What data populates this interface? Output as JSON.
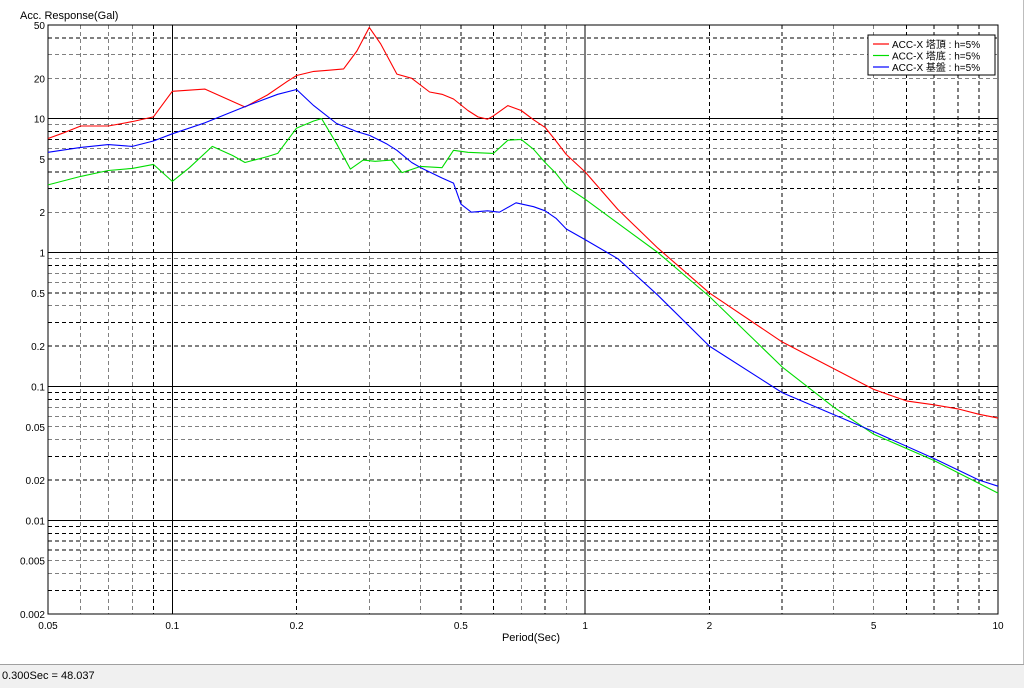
{
  "chart_data": {
    "type": "line",
    "ylabel": "Acc. Response(Gal)",
    "xlabel": "Period(Sec)",
    "x_scale": "log",
    "y_scale": "log",
    "xlim": [
      0.05,
      10
    ],
    "ylim": [
      0.002,
      50
    ],
    "x_ticks": [
      {
        "v": 0.05,
        "label": "0.05"
      },
      {
        "v": 0.1,
        "label": "0.1"
      },
      {
        "v": 0.2,
        "label": "0.2"
      },
      {
        "v": 0.5,
        "label": "0.5"
      },
      {
        "v": 1,
        "label": "1"
      },
      {
        "v": 2,
        "label": "2"
      },
      {
        "v": 5,
        "label": "5"
      },
      {
        "v": 10,
        "label": "10"
      }
    ],
    "y_ticks": [
      {
        "v": 50,
        "label": "50"
      },
      {
        "v": 20,
        "label": "20"
      },
      {
        "v": 10,
        "label": "10"
      },
      {
        "v": 5,
        "label": "5"
      },
      {
        "v": 2,
        "label": "2"
      },
      {
        "v": 1,
        "label": "1"
      },
      {
        "v": 0.5,
        "label": "0.5"
      },
      {
        "v": 0.2,
        "label": "0.2"
      },
      {
        "v": 0.1,
        "label": "0.1"
      },
      {
        "v": 0.05,
        "label": "0.05"
      },
      {
        "v": 0.02,
        "label": "0.02"
      },
      {
        "v": 0.01,
        "label": "0.01"
      },
      {
        "v": 0.005,
        "label": "0.005"
      },
      {
        "v": 0.002,
        "label": "0.002"
      }
    ],
    "grid": true,
    "legend_position": "top-right",
    "series": [
      {
        "name": "ACC-X 塔頂 : h=5%",
        "color": "#ff0000",
        "points": [
          [
            0.05,
            7.1
          ],
          [
            0.055,
            7.9
          ],
          [
            0.06,
            8.8
          ],
          [
            0.07,
            8.8
          ],
          [
            0.08,
            9.5
          ],
          [
            0.09,
            10.3
          ],
          [
            0.1,
            16.0
          ],
          [
            0.12,
            16.6
          ],
          [
            0.15,
            12.2
          ],
          [
            0.17,
            15.0
          ],
          [
            0.19,
            19.0
          ],
          [
            0.2,
            21.0
          ],
          [
            0.22,
            22.5
          ],
          [
            0.24,
            23.0
          ],
          [
            0.26,
            23.5
          ],
          [
            0.28,
            32.0
          ],
          [
            0.3,
            48.0
          ],
          [
            0.32,
            36.0
          ],
          [
            0.35,
            21.5
          ],
          [
            0.38,
            20.0
          ],
          [
            0.42,
            15.8
          ],
          [
            0.45,
            15.2
          ],
          [
            0.48,
            14.0
          ],
          [
            0.52,
            11.5
          ],
          [
            0.55,
            10.3
          ],
          [
            0.58,
            9.9
          ],
          [
            0.6,
            10.5
          ],
          [
            0.65,
            12.5
          ],
          [
            0.7,
            11.5
          ],
          [
            0.75,
            9.8
          ],
          [
            0.8,
            8.6
          ],
          [
            0.85,
            6.8
          ],
          [
            0.9,
            5.4
          ],
          [
            1.0,
            4.0
          ],
          [
            1.2,
            2.1
          ],
          [
            1.5,
            1.08
          ],
          [
            2.0,
            0.5
          ],
          [
            3.0,
            0.215
          ],
          [
            5.0,
            0.095
          ],
          [
            6.0,
            0.078
          ],
          [
            7.0,
            0.073
          ],
          [
            8.0,
            0.068
          ],
          [
            9.0,
            0.062
          ],
          [
            10.0,
            0.058
          ]
        ]
      },
      {
        "name": "ACC-X 塔底 : h=5%",
        "color": "#00dd00",
        "points": [
          [
            0.05,
            3.2
          ],
          [
            0.06,
            3.7
          ],
          [
            0.07,
            4.1
          ],
          [
            0.08,
            4.25
          ],
          [
            0.09,
            4.55
          ],
          [
            0.1,
            3.4
          ],
          [
            0.11,
            4.3
          ],
          [
            0.125,
            6.2
          ],
          [
            0.14,
            5.3
          ],
          [
            0.15,
            4.7
          ],
          [
            0.17,
            5.2
          ],
          [
            0.18,
            5.5
          ],
          [
            0.2,
            8.5
          ],
          [
            0.22,
            9.6
          ],
          [
            0.23,
            10.0
          ],
          [
            0.25,
            6.5
          ],
          [
            0.27,
            4.2
          ],
          [
            0.29,
            4.9
          ],
          [
            0.31,
            4.8
          ],
          [
            0.34,
            4.9
          ],
          [
            0.36,
            3.95
          ],
          [
            0.4,
            4.4
          ],
          [
            0.45,
            4.3
          ],
          [
            0.48,
            5.8
          ],
          [
            0.52,
            5.6
          ],
          [
            0.6,
            5.5
          ],
          [
            0.65,
            6.9
          ],
          [
            0.7,
            7.0
          ],
          [
            0.75,
            5.9
          ],
          [
            0.8,
            4.7
          ],
          [
            0.85,
            3.9
          ],
          [
            0.9,
            3.1
          ],
          [
            1.0,
            2.5
          ],
          [
            1.5,
            1.0
          ],
          [
            2.0,
            0.47
          ],
          [
            3.0,
            0.14
          ],
          [
            4.0,
            0.07
          ],
          [
            5.0,
            0.044
          ],
          [
            7.0,
            0.028
          ],
          [
            10.0,
            0.016
          ]
        ]
      },
      {
        "name": "ACC-X 基盤 : h=5%",
        "color": "#0000ff",
        "points": [
          [
            0.05,
            5.6
          ],
          [
            0.06,
            6.1
          ],
          [
            0.07,
            6.4
          ],
          [
            0.08,
            6.2
          ],
          [
            0.09,
            6.8
          ],
          [
            0.1,
            7.7
          ],
          [
            0.12,
            9.3
          ],
          [
            0.15,
            12.3
          ],
          [
            0.18,
            15.2
          ],
          [
            0.2,
            16.5
          ],
          [
            0.22,
            12.5
          ],
          [
            0.25,
            9.2
          ],
          [
            0.28,
            8.0
          ],
          [
            0.3,
            7.5
          ],
          [
            0.33,
            6.5
          ],
          [
            0.35,
            5.8
          ],
          [
            0.38,
            4.7
          ],
          [
            0.4,
            4.3
          ],
          [
            0.45,
            3.6
          ],
          [
            0.48,
            3.3
          ],
          [
            0.5,
            2.3
          ],
          [
            0.53,
            2.0
          ],
          [
            0.58,
            2.05
          ],
          [
            0.62,
            2.0
          ],
          [
            0.68,
            2.35
          ],
          [
            0.75,
            2.2
          ],
          [
            0.8,
            2.05
          ],
          [
            0.85,
            1.8
          ],
          [
            0.9,
            1.5
          ],
          [
            1.0,
            1.25
          ],
          [
            1.2,
            0.9
          ],
          [
            1.5,
            0.48
          ],
          [
            2.0,
            0.2
          ],
          [
            3.0,
            0.09
          ],
          [
            5.0,
            0.046
          ],
          [
            7.0,
            0.029
          ],
          [
            9.0,
            0.02
          ],
          [
            10.0,
            0.018
          ]
        ]
      }
    ]
  },
  "status": {
    "readout": "0.300Sec = 48.037"
  }
}
